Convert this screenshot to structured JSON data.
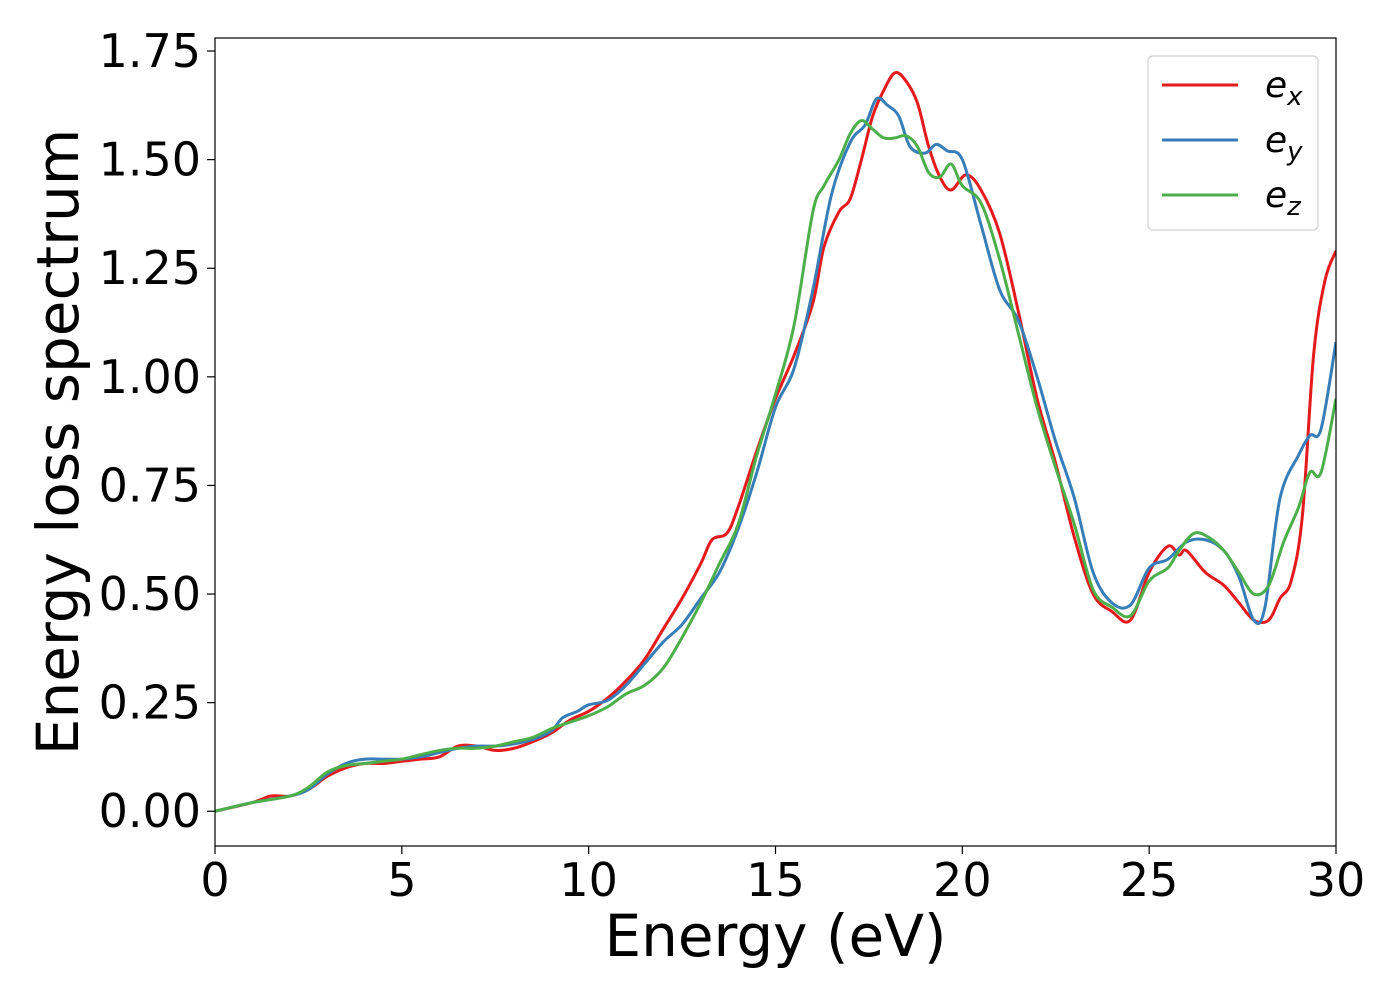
{
  "chart_data": {
    "type": "line",
    "title": "",
    "xlabel": "Energy (eV)",
    "ylabel": "Energy loss spectrum",
    "xlim": [
      0,
      30
    ],
    "ylim": [
      -0.08,
      1.78
    ],
    "xticks": [
      0,
      5,
      10,
      15,
      20,
      25,
      30
    ],
    "xtick_labels": [
      "0",
      "5",
      "10",
      "15",
      "20",
      "25",
      "30"
    ],
    "yticks": [
      0.0,
      0.25,
      0.5,
      0.75,
      1.0,
      1.25,
      1.5,
      1.75
    ],
    "ytick_labels": [
      "0.00",
      "0.25",
      "0.50",
      "0.75",
      "1.00",
      "1.25",
      "1.50",
      "1.75"
    ],
    "grid": false,
    "legend_position": "top-right",
    "series": [
      {
        "name": "e_x",
        "base": "e",
        "sub": "x",
        "color": "#e41a1c",
        "points": [
          [
            0,
            0.0
          ],
          [
            1,
            0.02
          ],
          [
            1.5,
            0.035
          ],
          [
            2,
            0.035
          ],
          [
            2.5,
            0.05
          ],
          [
            3,
            0.08
          ],
          [
            3.5,
            0.1
          ],
          [
            4,
            0.11
          ],
          [
            4.5,
            0.11
          ],
          [
            5,
            0.115
          ],
          [
            5.5,
            0.12
          ],
          [
            6,
            0.125
          ],
          [
            6.5,
            0.15
          ],
          [
            7,
            0.15
          ],
          [
            7.5,
            0.14
          ],
          [
            8,
            0.145
          ],
          [
            8.5,
            0.16
          ],
          [
            9,
            0.18
          ],
          [
            9.5,
            0.21
          ],
          [
            10,
            0.23
          ],
          [
            10.5,
            0.26
          ],
          [
            11,
            0.3
          ],
          [
            11.5,
            0.35
          ],
          [
            12,
            0.42
          ],
          [
            12.5,
            0.49
          ],
          [
            13,
            0.57
          ],
          [
            13.3,
            0.625
          ],
          [
            13.7,
            0.64
          ],
          [
            14,
            0.7
          ],
          [
            14.5,
            0.83
          ],
          [
            15,
            0.95
          ],
          [
            15.5,
            1.05
          ],
          [
            16,
            1.17
          ],
          [
            16.3,
            1.3
          ],
          [
            16.7,
            1.38
          ],
          [
            17,
            1.41
          ],
          [
            17.3,
            1.5
          ],
          [
            17.6,
            1.6
          ],
          [
            17.9,
            1.66
          ],
          [
            18.2,
            1.7
          ],
          [
            18.5,
            1.68
          ],
          [
            18.8,
            1.63
          ],
          [
            19.1,
            1.53
          ],
          [
            19.4,
            1.46
          ],
          [
            19.7,
            1.43
          ],
          [
            20.1,
            1.465
          ],
          [
            20.5,
            1.43
          ],
          [
            21,
            1.33
          ],
          [
            21.5,
            1.15
          ],
          [
            22,
            0.95
          ],
          [
            22.5,
            0.8
          ],
          [
            23,
            0.63
          ],
          [
            23.5,
            0.5
          ],
          [
            24,
            0.46
          ],
          [
            24.5,
            0.44
          ],
          [
            25,
            0.55
          ],
          [
            25.5,
            0.61
          ],
          [
            25.8,
            0.59
          ],
          [
            26,
            0.6
          ],
          [
            26.5,
            0.55
          ],
          [
            27,
            0.52
          ],
          [
            27.4,
            0.48
          ],
          [
            27.8,
            0.44
          ],
          [
            28.2,
            0.44
          ],
          [
            28.5,
            0.49
          ],
          [
            28.8,
            0.53
          ],
          [
            29.1,
            0.68
          ],
          [
            29.4,
            1.05
          ],
          [
            29.7,
            1.22
          ],
          [
            30,
            1.29
          ]
        ]
      },
      {
        "name": "e_y",
        "base": "e",
        "sub": "y",
        "color": "#377eb8",
        "points": [
          [
            0,
            0.0
          ],
          [
            1,
            0.02
          ],
          [
            2,
            0.035
          ],
          [
            2.5,
            0.05
          ],
          [
            3,
            0.085
          ],
          [
            3.5,
            0.11
          ],
          [
            4,
            0.12
          ],
          [
            4.5,
            0.12
          ],
          [
            5,
            0.12
          ],
          [
            5.5,
            0.125
          ],
          [
            6,
            0.135
          ],
          [
            6.5,
            0.145
          ],
          [
            7,
            0.15
          ],
          [
            7.5,
            0.15
          ],
          [
            8,
            0.155
          ],
          [
            8.5,
            0.165
          ],
          [
            9,
            0.185
          ],
          [
            9.3,
            0.215
          ],
          [
            9.7,
            0.23
          ],
          [
            10,
            0.245
          ],
          [
            10.5,
            0.255
          ],
          [
            11,
            0.29
          ],
          [
            11.5,
            0.34
          ],
          [
            12,
            0.39
          ],
          [
            12.5,
            0.43
          ],
          [
            13,
            0.49
          ],
          [
            13.5,
            0.55
          ],
          [
            14,
            0.65
          ],
          [
            14.5,
            0.78
          ],
          [
            15,
            0.93
          ],
          [
            15.5,
            1.02
          ],
          [
            16,
            1.2
          ],
          [
            16.5,
            1.42
          ],
          [
            17,
            1.54
          ],
          [
            17.4,
            1.58
          ],
          [
            17.7,
            1.64
          ],
          [
            18,
            1.625
          ],
          [
            18.3,
            1.6
          ],
          [
            18.6,
            1.53
          ],
          [
            19,
            1.515
          ],
          [
            19.3,
            1.535
          ],
          [
            19.6,
            1.52
          ],
          [
            20,
            1.5
          ],
          [
            20.5,
            1.35
          ],
          [
            21,
            1.2
          ],
          [
            21.5,
            1.13
          ],
          [
            22,
            1.0
          ],
          [
            22.5,
            0.85
          ],
          [
            23,
            0.72
          ],
          [
            23.5,
            0.55
          ],
          [
            24,
            0.48
          ],
          [
            24.5,
            0.475
          ],
          [
            25,
            0.56
          ],
          [
            25.5,
            0.58
          ],
          [
            26,
            0.62
          ],
          [
            26.5,
            0.625
          ],
          [
            27,
            0.6
          ],
          [
            27.4,
            0.54
          ],
          [
            27.8,
            0.44
          ],
          [
            28.1,
            0.47
          ],
          [
            28.5,
            0.72
          ],
          [
            29,
            0.82
          ],
          [
            29.3,
            0.865
          ],
          [
            29.6,
            0.88
          ],
          [
            30,
            1.08
          ]
        ]
      },
      {
        "name": "e_z",
        "base": "e",
        "sub": "z",
        "color": "#4daf4a",
        "points": [
          [
            0,
            0.0
          ],
          [
            1,
            0.02
          ],
          [
            2,
            0.035
          ],
          [
            2.5,
            0.055
          ],
          [
            3,
            0.09
          ],
          [
            3.5,
            0.105
          ],
          [
            4,
            0.11
          ],
          [
            4.5,
            0.115
          ],
          [
            5,
            0.12
          ],
          [
            5.5,
            0.13
          ],
          [
            6,
            0.14
          ],
          [
            6.5,
            0.145
          ],
          [
            7,
            0.145
          ],
          [
            7.5,
            0.15
          ],
          [
            8,
            0.16
          ],
          [
            8.5,
            0.17
          ],
          [
            9,
            0.19
          ],
          [
            9.5,
            0.205
          ],
          [
            10,
            0.22
          ],
          [
            10.5,
            0.24
          ],
          [
            11,
            0.27
          ],
          [
            11.5,
            0.29
          ],
          [
            12,
            0.33
          ],
          [
            12.5,
            0.4
          ],
          [
            13,
            0.48
          ],
          [
            13.5,
            0.57
          ],
          [
            14,
            0.66
          ],
          [
            14.5,
            0.82
          ],
          [
            15,
            0.96
          ],
          [
            15.5,
            1.12
          ],
          [
            16,
            1.38
          ],
          [
            16.3,
            1.44
          ],
          [
            16.7,
            1.5
          ],
          [
            17,
            1.56
          ],
          [
            17.3,
            1.59
          ],
          [
            17.6,
            1.57
          ],
          [
            17.9,
            1.55
          ],
          [
            18.2,
            1.55
          ],
          [
            18.5,
            1.555
          ],
          [
            18.8,
            1.53
          ],
          [
            19.1,
            1.47
          ],
          [
            19.4,
            1.46
          ],
          [
            19.7,
            1.49
          ],
          [
            20,
            1.44
          ],
          [
            20.5,
            1.4
          ],
          [
            21,
            1.27
          ],
          [
            21.5,
            1.1
          ],
          [
            22,
            0.93
          ],
          [
            22.5,
            0.79
          ],
          [
            23,
            0.66
          ],
          [
            23.5,
            0.51
          ],
          [
            24,
            0.47
          ],
          [
            24.5,
            0.45
          ],
          [
            25,
            0.53
          ],
          [
            25.5,
            0.56
          ],
          [
            25.8,
            0.6
          ],
          [
            26.2,
            0.64
          ],
          [
            26.6,
            0.63
          ],
          [
            27,
            0.6
          ],
          [
            27.4,
            0.55
          ],
          [
            27.8,
            0.5
          ],
          [
            28.2,
            0.52
          ],
          [
            28.6,
            0.62
          ],
          [
            29,
            0.7
          ],
          [
            29.3,
            0.78
          ],
          [
            29.6,
            0.78
          ],
          [
            30,
            0.95
          ]
        ]
      }
    ]
  }
}
